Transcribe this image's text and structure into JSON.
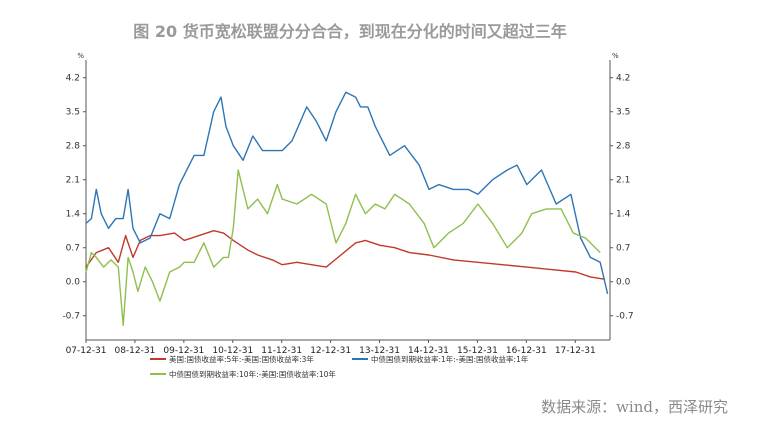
{
  "title": "图 20 货币宽松联盟分分合合，到现在分化的时间又超过三年",
  "source": "数据来源：wind，西泽研究",
  "colors": {
    "series_red": "#c0392b",
    "series_blue": "#2e75b6",
    "series_green": "#8fbf4d"
  },
  "chart_data": {
    "type": "line",
    "title": "图 20 货币宽松联盟分分合合，到现在分化的时间又超过三年",
    "xlabel": "",
    "ylabel": "%",
    "y2label": "%",
    "ylim": [
      -1.2,
      4.4
    ],
    "yticks": [
      "4.2",
      "3.5",
      "2.8",
      "2.1",
      "1.4",
      "0.7",
      "0.0",
      "-0.7"
    ],
    "yticks_right": [
      "4.2",
      "3.5",
      "2.8",
      "2.1",
      "1.4",
      "0.7",
      "0.0",
      "-0.7"
    ],
    "xticks": [
      "07-12-31",
      "08-12-31",
      "09-12-31",
      "10-12-31",
      "11-12-31",
      "12-12-31",
      "13-12-31",
      "14-12-31",
      "15-12-31",
      "16-12-31",
      "17-12-31"
    ],
    "grid": false,
    "legend_position": "bottom",
    "series": [
      {
        "name": "美国:国债收益率:5年:-美国:国债收益率:3年",
        "color": "#c0392b",
        "x": [
          2007.99,
          2008.2,
          2008.45,
          2008.65,
          2008.8,
          2008.95,
          2009.1,
          2009.3,
          2009.5,
          2009.8,
          2010.0,
          2010.3,
          2010.6,
          2010.8,
          2011.0,
          2011.3,
          2011.5,
          2011.8,
          2012.0,
          2012.3,
          2012.6,
          2012.9,
          2013.2,
          2013.5,
          2013.7,
          2014.0,
          2014.3,
          2014.6,
          2015.0,
          2015.5,
          2016.0,
          2016.5,
          2017.0,
          2017.5,
          2018.0,
          2018.3,
          2018.6
        ],
        "values": [
          0.3,
          0.6,
          0.7,
          0.4,
          0.95,
          0.5,
          0.85,
          0.95,
          0.95,
          1.0,
          0.85,
          0.95,
          1.05,
          1.0,
          0.85,
          0.65,
          0.55,
          0.45,
          0.35,
          0.4,
          0.35,
          0.3,
          0.55,
          0.8,
          0.85,
          0.75,
          0.7,
          0.6,
          0.55,
          0.45,
          0.4,
          0.35,
          0.3,
          0.25,
          0.2,
          0.1,
          0.05
        ]
      },
      {
        "name": "中债国债到期收益率:1年:-美国:国债收益率:1年",
        "color": "#2e75b6",
        "x": [
          2007.99,
          2008.1,
          2008.2,
          2008.3,
          2008.45,
          2008.6,
          2008.75,
          2008.85,
          2008.95,
          2009.1,
          2009.3,
          2009.5,
          2009.7,
          2009.9,
          2010.0,
          2010.2,
          2010.4,
          2010.6,
          2010.75,
          2010.85,
          2011.0,
          2011.2,
          2011.4,
          2011.6,
          2011.8,
          2012.0,
          2012.2,
          2012.5,
          2012.7,
          2012.9,
          2013.1,
          2013.3,
          2013.5,
          2013.6,
          2013.75,
          2013.9,
          2014.0,
          2014.2,
          2014.5,
          2014.8,
          2015.0,
          2015.2,
          2015.5,
          2015.8,
          2016.0,
          2016.3,
          2016.6,
          2016.8,
          2017.0,
          2017.3,
          2017.6,
          2017.9,
          2018.1,
          2018.3,
          2018.5,
          2018.65
        ],
        "values": [
          1.2,
          1.3,
          1.9,
          1.4,
          1.1,
          1.3,
          1.3,
          1.9,
          1.1,
          0.8,
          0.9,
          1.4,
          1.3,
          2.0,
          2.2,
          2.6,
          2.6,
          3.5,
          3.8,
          3.2,
          2.8,
          2.5,
          3.0,
          2.7,
          2.7,
          2.7,
          2.9,
          3.6,
          3.3,
          2.9,
          3.5,
          3.9,
          3.8,
          3.6,
          3.6,
          3.2,
          3.0,
          2.6,
          2.8,
          2.4,
          1.9,
          2.0,
          1.9,
          1.9,
          1.8,
          2.1,
          2.3,
          2.4,
          2.0,
          2.3,
          1.6,
          1.8,
          0.9,
          0.5,
          0.4,
          -0.25
        ]
      },
      {
        "name": "中债国债到期收益率:10年:-美国:国债收益率:10年",
        "color": "#8fbf4d",
        "x": [
          2007.99,
          2008.1,
          2008.2,
          2008.35,
          2008.5,
          2008.65,
          2008.75,
          2008.85,
          2008.95,
          2009.05,
          2009.2,
          2009.35,
          2009.5,
          2009.7,
          2009.9,
          2010.0,
          2010.2,
          2010.4,
          2010.6,
          2010.8,
          2010.9,
          2011.0,
          2011.1,
          2011.3,
          2011.5,
          2011.7,
          2011.9,
          2012.0,
          2012.3,
          2012.6,
          2012.9,
          2013.1,
          2013.3,
          2013.5,
          2013.7,
          2013.9,
          2014.1,
          2014.3,
          2014.6,
          2014.9,
          2015.1,
          2015.4,
          2015.7,
          2016.0,
          2016.3,
          2016.6,
          2016.9,
          2017.1,
          2017.4,
          2017.7,
          2017.95,
          2018.2,
          2018.5
        ],
        "values": [
          0.2,
          0.6,
          0.5,
          0.3,
          0.45,
          0.3,
          -0.9,
          0.5,
          0.2,
          -0.2,
          0.3,
          0.0,
          -0.4,
          0.2,
          0.3,
          0.4,
          0.4,
          0.8,
          0.3,
          0.5,
          0.5,
          1.1,
          2.3,
          1.5,
          1.7,
          1.4,
          2.0,
          1.7,
          1.6,
          1.8,
          1.6,
          0.8,
          1.2,
          1.8,
          1.4,
          1.6,
          1.5,
          1.8,
          1.6,
          1.2,
          0.7,
          1.0,
          1.2,
          1.6,
          1.2,
          0.7,
          1.0,
          1.4,
          1.5,
          1.5,
          1.0,
          0.9,
          0.6
        ]
      }
    ]
  }
}
